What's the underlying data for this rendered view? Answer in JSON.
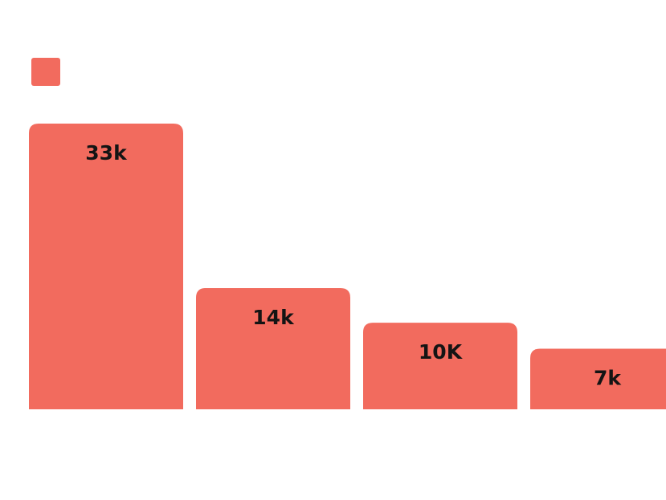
{
  "chart_data": {
    "type": "bar",
    "categories": [
      "",
      "",
      "",
      ""
    ],
    "values": [
      33,
      14,
      10,
      7
    ],
    "value_labels": [
      "33k",
      "14k",
      "10K",
      "7k"
    ],
    "ylim": [
      0,
      33
    ],
    "grid": false,
    "legend": "top-left",
    "colors": {
      "bar": "#F26B5E",
      "label": "#141414",
      "background": "#FFFFFF"
    }
  }
}
